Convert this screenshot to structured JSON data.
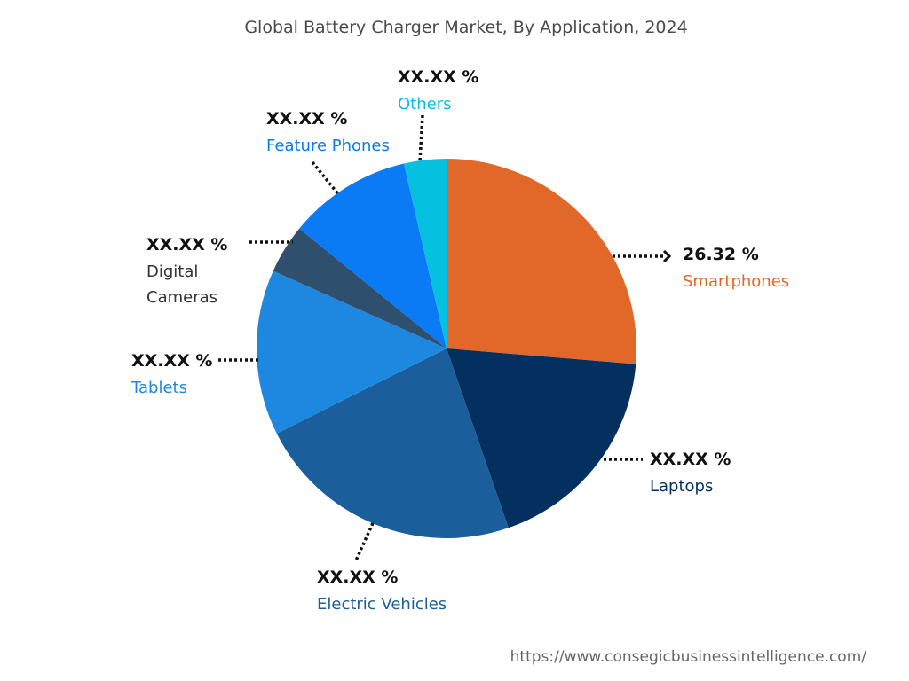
{
  "chart_data": {
    "type": "pie",
    "title": "Global Battery Charger Market, By Application, 2024",
    "categories": [
      "Smartphones",
      "Laptops",
      "Electric Vehicles",
      "Tablets",
      "Digital Cameras",
      "Feature Phones",
      "Others"
    ],
    "values": [
      26.32,
      18.4,
      22.9,
      14.1,
      4.2,
      10.5,
      3.6
    ],
    "value_labels": [
      "26.32 %",
      "XX.XX %",
      "XX.XX %",
      "XX.XX %",
      "XX.XX %",
      "XX.XX %",
      "XX.XX %"
    ],
    "colors": [
      "#e2682a",
      "#04305f",
      "#1a5f9c",
      "#1e88e0",
      "#2f4f6e",
      "#0a7bf5",
      "#06c0e0"
    ],
    "source": "https://www.consegicbusinessintelligence.com/"
  }
}
